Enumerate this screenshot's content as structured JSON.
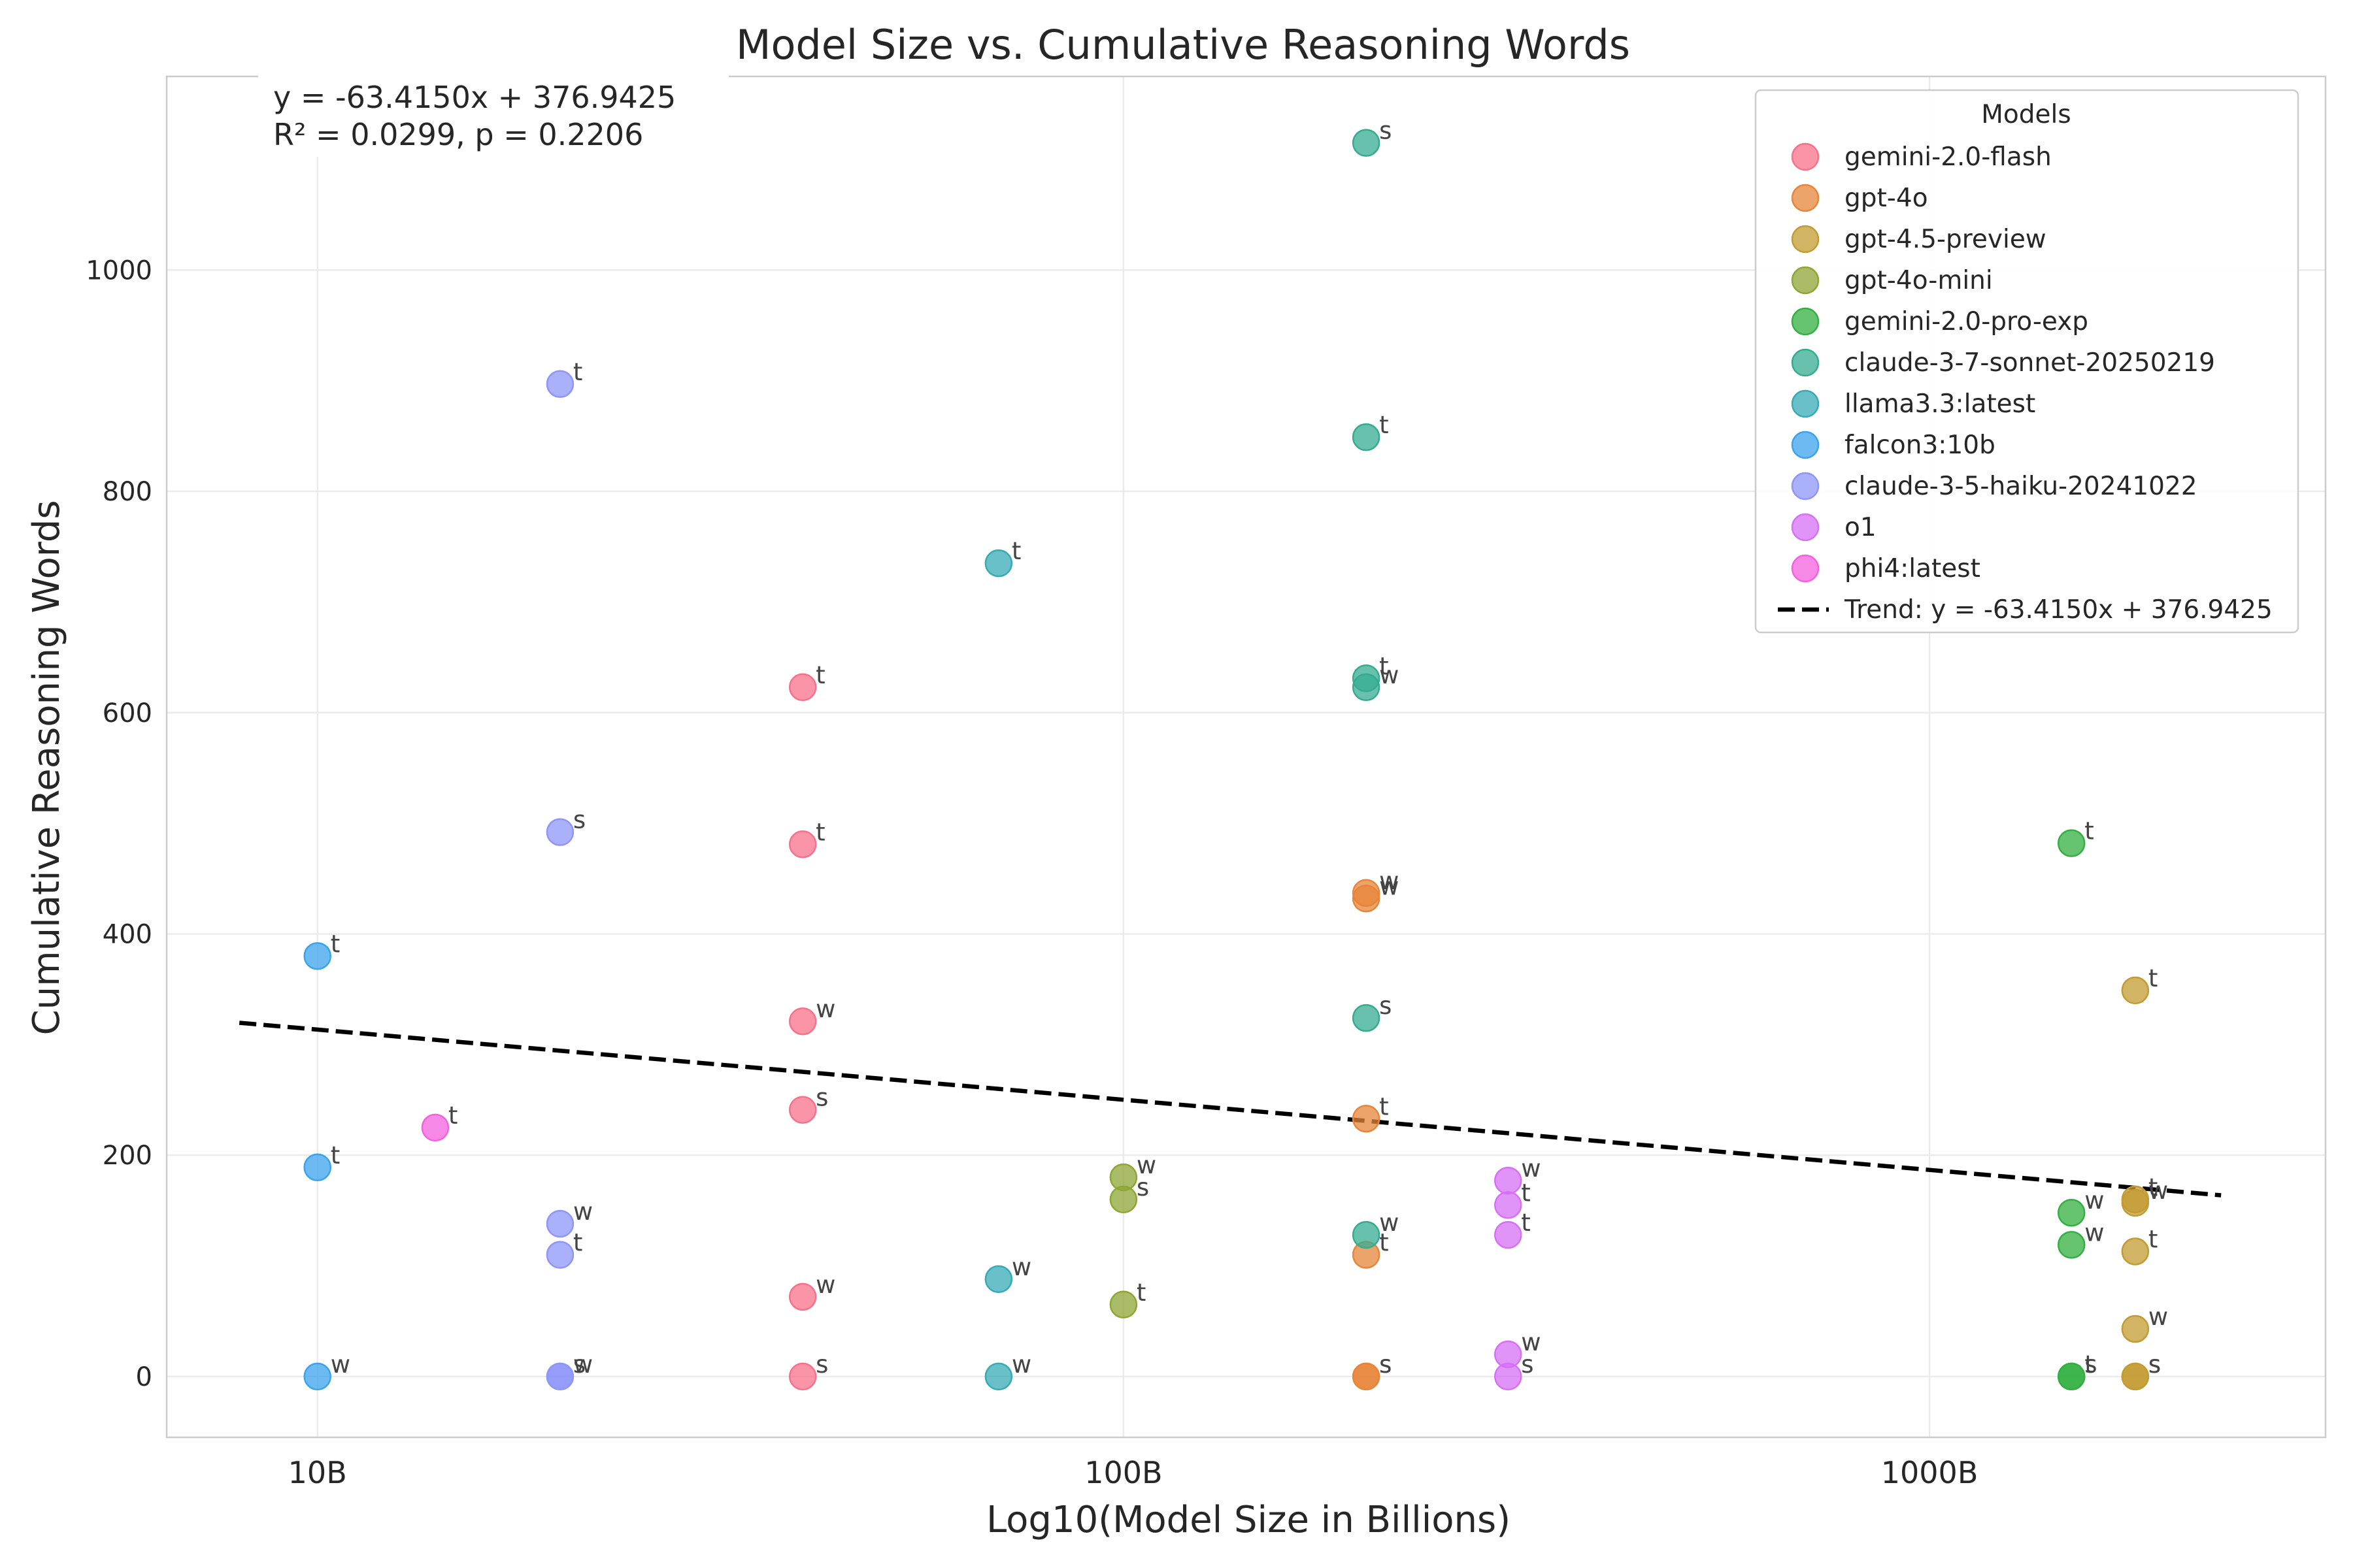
{
  "chart_data": {
    "type": "scatter",
    "title": "Model Size vs. Cumulative Reasoning Words",
    "xlabel": "Log10(Model Size in Billions)",
    "ylabel": "Cumulative Reasoning Words",
    "x_scale": "log10",
    "xlim": [
      6.5,
      3100
    ],
    "ylim": [
      -55,
      1175
    ],
    "x_ticks": [
      10,
      100,
      1000
    ],
    "x_tick_labels": [
      "10B",
      "100B",
      "1000B"
    ],
    "y_ticks": [
      0,
      200,
      400,
      600,
      800,
      1000
    ],
    "y_tick_labels": [
      "0",
      "200",
      "400",
      "600",
      "800",
      "1000"
    ],
    "grid": true,
    "legend_title": "Models",
    "legend_position": "top-right",
    "annotation": [
      "y = -63.4150x + 376.9425",
      "R² = 0.0299, p = 0.2206"
    ],
    "trend": {
      "label": "Trend: y = -63.4150x + 376.9425",
      "slope": -63.415,
      "intercept": 376.9425,
      "x_range": [
        8,
        2300
      ],
      "color": "#000000",
      "style": "dashed"
    },
    "series": [
      {
        "name": "gemini-2.0-flash",
        "color": "#f77189",
        "points": [
          {
            "x": 40,
            "y": 623,
            "label": "t"
          },
          {
            "x": 40,
            "y": 481,
            "label": "t"
          },
          {
            "x": 40,
            "y": 321,
            "label": "w"
          },
          {
            "x": 40,
            "y": 241,
            "label": "s"
          },
          {
            "x": 40,
            "y": 72,
            "label": "w"
          },
          {
            "x": 40,
            "y": 0,
            "label": "s"
          }
        ]
      },
      {
        "name": "gpt-4o",
        "color": "#e7853a",
        "points": [
          {
            "x": 200,
            "y": 437,
            "label": "w"
          },
          {
            "x": 200,
            "y": 432,
            "label": "w"
          },
          {
            "x": 200,
            "y": 233,
            "label": "t"
          },
          {
            "x": 200,
            "y": 110,
            "label": "t"
          },
          {
            "x": 200,
            "y": 0,
            "label": "s"
          },
          {
            "x": 200,
            "y": 0,
            "label": "s"
          }
        ]
      },
      {
        "name": "gpt-4.5-preview",
        "color": "#c39b32",
        "points": [
          {
            "x": 1800,
            "y": 349,
            "label": "t"
          },
          {
            "x": 1800,
            "y": 160,
            "label": "t"
          },
          {
            "x": 1800,
            "y": 157,
            "label": "w"
          },
          {
            "x": 1800,
            "y": 113,
            "label": "t"
          },
          {
            "x": 1800,
            "y": 43,
            "label": "w"
          },
          {
            "x": 1800,
            "y": 0,
            "label": "s"
          },
          {
            "x": 1800,
            "y": 0,
            "label": "s"
          }
        ]
      },
      {
        "name": "gpt-4o-mini",
        "color": "#8ea634",
        "points": [
          {
            "x": 100,
            "y": 180,
            "label": "w"
          },
          {
            "x": 100,
            "y": 160,
            "label": "s"
          },
          {
            "x": 100,
            "y": 65,
            "label": "t"
          }
        ]
      },
      {
        "name": "gemini-2.0-pro-exp",
        "color": "#33b041",
        "points": [
          {
            "x": 1500,
            "y": 482,
            "label": "t"
          },
          {
            "x": 1500,
            "y": 148,
            "label": "w"
          },
          {
            "x": 1500,
            "y": 119,
            "label": "w"
          },
          {
            "x": 1500,
            "y": 0,
            "label": "t"
          },
          {
            "x": 1500,
            "y": 0,
            "label": "s"
          }
        ]
      },
      {
        "name": "claude-3-7-sonnet-20250219",
        "color": "#35ac91",
        "points": [
          {
            "x": 200,
            "y": 1115,
            "label": "s"
          },
          {
            "x": 200,
            "y": 849,
            "label": "t"
          },
          {
            "x": 200,
            "y": 631,
            "label": "t"
          },
          {
            "x": 200,
            "y": 623,
            "label": "w"
          },
          {
            "x": 200,
            "y": 324,
            "label": "s"
          },
          {
            "x": 200,
            "y": 128,
            "label": "w"
          }
        ]
      },
      {
        "name": "llama3.3:latest",
        "color": "#37abb5",
        "points": [
          {
            "x": 70,
            "y": 735,
            "label": "t"
          },
          {
            "x": 70,
            "y": 88,
            "label": "w"
          },
          {
            "x": 70,
            "y": 0,
            "label": "w"
          }
        ]
      },
      {
        "name": "falcon3:10b",
        "color": "#3ba3ec",
        "points": [
          {
            "x": 10,
            "y": 380,
            "label": "t"
          },
          {
            "x": 10,
            "y": 189,
            "label": "t"
          },
          {
            "x": 10,
            "y": 0,
            "label": "w"
          }
        ]
      },
      {
        "name": "claude-3-5-haiku-20241022",
        "color": "#8e96f8",
        "points": [
          {
            "x": 20,
            "y": 897,
            "label": "t"
          },
          {
            "x": 20,
            "y": 492,
            "label": "s"
          },
          {
            "x": 20,
            "y": 138,
            "label": "w"
          },
          {
            "x": 20,
            "y": 110,
            "label": "t"
          },
          {
            "x": 20,
            "y": 0,
            "label": "s"
          },
          {
            "x": 20,
            "y": 0,
            "label": "w"
          }
        ]
      },
      {
        "name": "o1",
        "color": "#d670f5",
        "points": [
          {
            "x": 300,
            "y": 177,
            "label": "w"
          },
          {
            "x": 300,
            "y": 155,
            "label": "t"
          },
          {
            "x": 300,
            "y": 128,
            "label": "t"
          },
          {
            "x": 300,
            "y": 20,
            "label": "w"
          },
          {
            "x": 300,
            "y": 0,
            "label": "s"
          }
        ]
      },
      {
        "name": "phi4:latest",
        "color": "#f461dd",
        "points": [
          {
            "x": 14,
            "y": 225,
            "label": "t"
          }
        ]
      }
    ]
  }
}
